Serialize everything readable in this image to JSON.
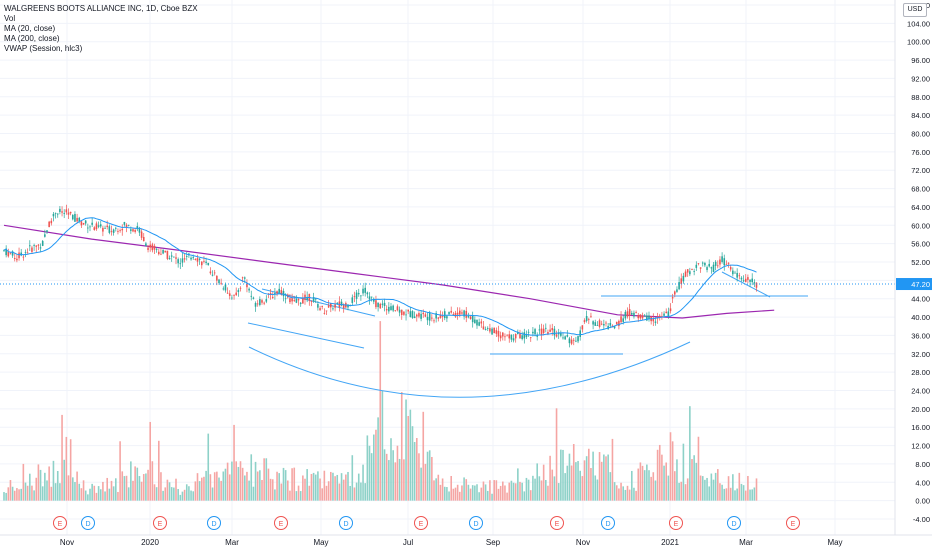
{
  "header": {
    "title": "WALGREENS BOOTS ALLIANCE INC, 1D, Cboe BZX",
    "indicators": [
      "Vol",
      "MA (20, close)",
      "MA (200, close)",
      "VWAP (Session, hlc3)"
    ],
    "currency_button": "USD"
  },
  "colors": {
    "up": "#26a69a",
    "down": "#ef5350",
    "ma20": "#2196f3",
    "ma200": "#9c27b0",
    "drawings": "#42a5f5",
    "last_price_label": "#2196f3"
  },
  "chart_data": {
    "type": "candlestick",
    "title": "WALGREENS BOOTS ALLIANCE INC, 1D, Cboe BZX",
    "y_ticks": [
      "108.00",
      "104.00",
      "100.00",
      "96.00",
      "92.00",
      "88.00",
      "84.00",
      "80.00",
      "76.00",
      "72.00",
      "68.00",
      "64.00",
      "60.00",
      "56.00",
      "52.00",
      "48.00",
      "44.00",
      "40.00",
      "36.00",
      "32.00",
      "28.00",
      "24.00",
      "20.00",
      "16.00",
      "12.00",
      "8.00",
      "4.00",
      "0.00",
      "-4.00"
    ],
    "x_ticks": [
      "Nov",
      "2020",
      "Mar",
      "May",
      "Jul",
      "Sep",
      "Nov",
      "2021",
      "Mar",
      "May"
    ],
    "ylim": [
      -4,
      108
    ],
    "last_price": "47.20",
    "events": [
      {
        "label": "E",
        "kind": "earnings"
      },
      {
        "label": "D",
        "kind": "dividend"
      },
      {
        "label": "E",
        "kind": "earnings"
      },
      {
        "label": "D",
        "kind": "dividend"
      },
      {
        "label": "E",
        "kind": "earnings"
      },
      {
        "label": "D",
        "kind": "dividend"
      },
      {
        "label": "E",
        "kind": "earnings"
      },
      {
        "label": "D",
        "kind": "dividend"
      },
      {
        "label": "E",
        "kind": "earnings"
      },
      {
        "label": "D",
        "kind": "dividend"
      },
      {
        "label": "E",
        "kind": "earnings"
      },
      {
        "label": "D",
        "kind": "dividend"
      },
      {
        "label": "E",
        "kind": "earnings"
      }
    ],
    "price_path": [
      [
        "2019-10-01",
        54.5
      ],
      [
        "2019-10-10",
        53.0
      ],
      [
        "2019-10-20",
        55.0
      ],
      [
        "2019-10-28",
        56.0
      ],
      [
        "2019-11-01",
        60.0
      ],
      [
        "2019-11-06",
        63.0
      ],
      [
        "2019-11-15",
        62.5
      ],
      [
        "2019-11-25",
        60.5
      ],
      [
        "2019-12-05",
        59.5
      ],
      [
        "2019-12-15",
        59.0
      ],
      [
        "2019-12-24",
        60.0
      ],
      [
        "2020-01-03",
        59.0
      ],
      [
        "2020-01-09",
        55.5
      ],
      [
        "2020-01-20",
        54.0
      ],
      [
        "2020-02-01",
        52.0
      ],
      [
        "2020-02-10",
        53.5
      ],
      [
        "2020-02-20",
        51.0
      ],
      [
        "2020-03-01",
        47.0
      ],
      [
        "2020-03-10",
        44.0
      ],
      [
        "2020-03-16",
        49.0
      ],
      [
        "2020-03-23",
        43.0
      ],
      [
        "2020-04-01",
        44.0
      ],
      [
        "2020-04-10",
        46.0
      ],
      [
        "2020-04-20",
        43.0
      ],
      [
        "2020-05-01",
        44.5
      ],
      [
        "2020-05-10",
        41.5
      ],
      [
        "2020-05-18",
        42.5
      ],
      [
        "2020-05-28",
        43.0
      ],
      [
        "2020-06-08",
        46.0
      ],
      [
        "2020-06-15",
        43.0
      ],
      [
        "2020-06-25",
        42.0
      ],
      [
        "2020-07-06",
        41.0
      ],
      [
        "2020-07-15",
        40.5
      ],
      [
        "2020-07-25",
        40.0
      ],
      [
        "2020-08-05",
        40.5
      ],
      [
        "2020-08-15",
        41.0
      ],
      [
        "2020-08-25",
        39.0
      ],
      [
        "2020-09-05",
        37.0
      ],
      [
        "2020-09-15",
        35.5
      ],
      [
        "2020-09-25",
        36.0
      ],
      [
        "2020-10-05",
        36.5
      ],
      [
        "2020-10-15",
        37.0
      ],
      [
        "2020-10-25",
        36.0
      ],
      [
        "2020-11-02",
        34.0
      ],
      [
        "2020-11-09",
        40.0
      ],
      [
        "2020-11-18",
        38.5
      ],
      [
        "2020-11-30",
        38.0
      ],
      [
        "2020-12-08",
        41.0
      ],
      [
        "2020-12-18",
        40.0
      ],
      [
        "2020-12-28",
        39.5
      ],
      [
        "2021-01-05",
        40.5
      ],
      [
        "2021-01-11",
        46.0
      ],
      [
        "2021-01-18",
        49.5
      ],
      [
        "2021-01-27",
        51.5
      ],
      [
        "2021-02-05",
        50.5
      ],
      [
        "2021-02-12",
        52.5
      ],
      [
        "2021-02-22",
        49.0
      ],
      [
        "2021-03-01",
        48.0
      ],
      [
        "2021-03-08",
        47.2
      ]
    ],
    "ma200_path": [
      [
        "2019-10-01",
        60.0
      ],
      [
        "2019-12-01",
        57.0
      ],
      [
        "2020-02-01",
        54.5
      ],
      [
        "2020-04-01",
        52.0
      ],
      [
        "2020-06-01",
        49.5
      ],
      [
        "2020-08-01",
        47.0
      ],
      [
        "2020-10-01",
        44.0
      ],
      [
        "2020-12-01",
        40.5
      ],
      [
        "2021-01-15",
        39.8
      ],
      [
        "2021-02-15",
        40.8
      ],
      [
        "2021-03-20",
        41.5
      ]
    ],
    "volume_path": [
      [
        "2019-10-01",
        2.5
      ],
      [
        "2019-11-06",
        9.0
      ],
      [
        "2019-12-01",
        3.0
      ],
      [
        "2020-01-09",
        8.0
      ],
      [
        "2020-02-01",
        3.5
      ],
      [
        "2020-03-16",
        9.0
      ],
      [
        "2020-04-15",
        6.0
      ],
      [
        "2020-06-01",
        5.0
      ],
      [
        "2020-06-25",
        24.0
      ],
      [
        "2020-08-01",
        4.5
      ],
      [
        "2020-09-15",
        3.5
      ],
      [
        "2020-11-09",
        12.0
      ],
      [
        "2020-12-10",
        5.0
      ],
      [
        "2021-01-07",
        12.0
      ],
      [
        "2021-02-01",
        6.0
      ],
      [
        "2021-03-08",
        4.0
      ]
    ]
  }
}
